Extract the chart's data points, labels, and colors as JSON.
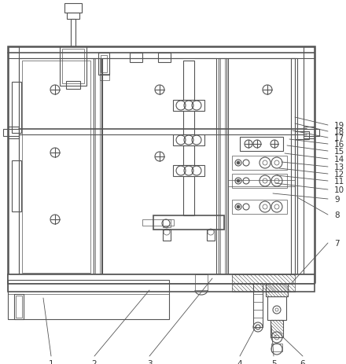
{
  "bg_color": "#ffffff",
  "line_color": "#555555",
  "label_color": "#333333",
  "figsize": [
    4.4,
    4.64
  ],
  "dpi": 100
}
